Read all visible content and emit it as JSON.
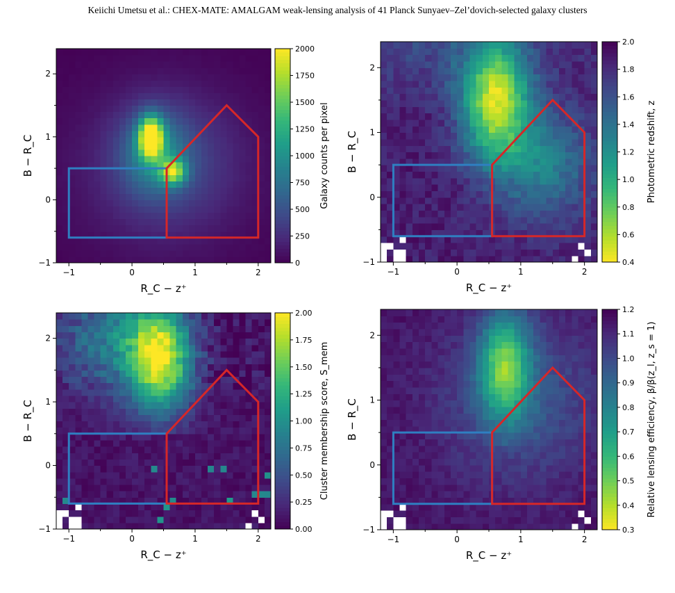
{
  "header": {
    "running_title": "Keiichi Umetsu  et al.: CHEX-MATE: AMALGAM weak-lensing analysis of 41 Planck Sunyaev–Zel’dovich-selected galaxy clusters"
  },
  "chart_data": [
    {
      "id": "counts",
      "type": "heatmap",
      "title": "",
      "xlabel": "R_C − z⁺",
      "ylabel": "B − R_C",
      "xlim": [
        -1.2,
        2.2
      ],
      "ylim": [
        -1.0,
        2.4
      ],
      "xticks": [
        -1,
        0,
        1,
        2
      ],
      "yticks": [
        -1,
        0,
        1,
        2
      ],
      "colormap": "viridis",
      "colormap_reversed": false,
      "colorbar": {
        "label": "Galaxy counts per pixel",
        "range": [
          0,
          2000
        ],
        "ticks": [
          0,
          250,
          500,
          750,
          1000,
          1250,
          1500,
          1750,
          2000
        ],
        "decimals": 0
      },
      "field": "counts",
      "background_selection_regions": [
        {
          "name": "blue",
          "color": "#2f7fc1",
          "vertices": [
            [
              -1.0,
              -0.6
            ],
            [
              0.55,
              -0.6
            ],
            [
              0.55,
              0.5
            ],
            [
              -1.0,
              0.5
            ]
          ]
        },
        {
          "name": "red",
          "color": "#d62728",
          "vertices": [
            [
              0.55,
              -0.6
            ],
            [
              2.0,
              -0.6
            ],
            [
              2.0,
              1.0
            ],
            [
              1.5,
              1.5
            ],
            [
              0.55,
              0.5
            ]
          ]
        }
      ]
    },
    {
      "id": "redshift",
      "type": "heatmap",
      "title": "",
      "xlabel": "R_C − z⁺",
      "ylabel": "B − R_C",
      "xlim": [
        -1.2,
        2.2
      ],
      "ylim": [
        -1.0,
        2.4
      ],
      "xticks": [
        -1,
        0,
        1,
        2
      ],
      "yticks": [
        -1,
        0,
        1,
        2
      ],
      "colormap": "viridis",
      "colormap_reversed": true,
      "colorbar": {
        "label": "Photometric redshift, z",
        "range": [
          0.4,
          2.0
        ],
        "ticks": [
          0.4,
          0.6,
          0.8,
          1.0,
          1.2,
          1.4,
          1.6,
          1.8,
          2.0
        ],
        "decimals": 1
      },
      "field": "redshift",
      "background_selection_regions": [
        {
          "name": "blue",
          "color": "#2f7fc1",
          "vertices": [
            [
              -1.0,
              -0.6
            ],
            [
              0.55,
              -0.6
            ],
            [
              0.55,
              0.5
            ],
            [
              -1.0,
              0.5
            ]
          ]
        },
        {
          "name": "red",
          "color": "#d62728",
          "vertices": [
            [
              0.55,
              -0.6
            ],
            [
              2.0,
              -0.6
            ],
            [
              2.0,
              1.0
            ],
            [
              1.5,
              1.5
            ],
            [
              0.55,
              0.5
            ]
          ]
        }
      ]
    },
    {
      "id": "membership",
      "type": "heatmap",
      "title": "",
      "xlabel": "R_C − z⁺",
      "ylabel": "B − R_C",
      "xlim": [
        -1.2,
        2.2
      ],
      "ylim": [
        -1.0,
        2.4
      ],
      "xticks": [
        -1,
        0,
        1,
        2
      ],
      "yticks": [
        -1,
        0,
        1,
        2
      ],
      "colormap": "viridis",
      "colormap_reversed": false,
      "colorbar": {
        "label": "Cluster membership score, S_mem",
        "range": [
          0.0,
          2.0
        ],
        "ticks": [
          0.0,
          0.25,
          0.5,
          0.75,
          1.0,
          1.25,
          1.5,
          1.75,
          2.0
        ],
        "decimals": 2
      },
      "field": "membership",
      "background_selection_regions": [
        {
          "name": "blue",
          "color": "#2f7fc1",
          "vertices": [
            [
              -1.0,
              -0.6
            ],
            [
              0.55,
              -0.6
            ],
            [
              0.55,
              0.5
            ],
            [
              -1.0,
              0.5
            ]
          ]
        },
        {
          "name": "red",
          "color": "#d62728",
          "vertices": [
            [
              0.55,
              -0.6
            ],
            [
              2.0,
              -0.6
            ],
            [
              2.0,
              1.0
            ],
            [
              1.5,
              1.5
            ],
            [
              0.55,
              0.5
            ]
          ]
        }
      ]
    },
    {
      "id": "efficiency",
      "type": "heatmap",
      "title": "",
      "xlabel": "R_C − z⁺",
      "ylabel": "B − R_C",
      "xlim": [
        -1.2,
        2.2
      ],
      "ylim": [
        -1.0,
        2.4
      ],
      "xticks": [
        -1,
        0,
        1,
        2
      ],
      "yticks": [
        -1,
        0,
        1,
        2
      ],
      "colormap": "viridis",
      "colormap_reversed": true,
      "colorbar": {
        "label": "Relative lensing efficiency, β/β(z_l, z_s = 1)",
        "range": [
          0.3,
          1.2
        ],
        "ticks": [
          0.3,
          0.4,
          0.5,
          0.6,
          0.7,
          0.8,
          0.9,
          1.0,
          1.1,
          1.2
        ],
        "decimals": 1
      },
      "field": "efficiency",
      "background_selection_regions": [
        {
          "name": "blue",
          "color": "#2f7fc1",
          "vertices": [
            [
              -1.0,
              -0.6
            ],
            [
              0.55,
              -0.6
            ],
            [
              0.55,
              0.5
            ],
            [
              -1.0,
              0.5
            ]
          ]
        },
        {
          "name": "red",
          "color": "#d62728",
          "vertices": [
            [
              0.55,
              -0.6
            ],
            [
              2.0,
              -0.6
            ],
            [
              2.0,
              1.0
            ],
            [
              1.5,
              1.5
            ],
            [
              0.55,
              0.5
            ]
          ]
        }
      ]
    }
  ]
}
